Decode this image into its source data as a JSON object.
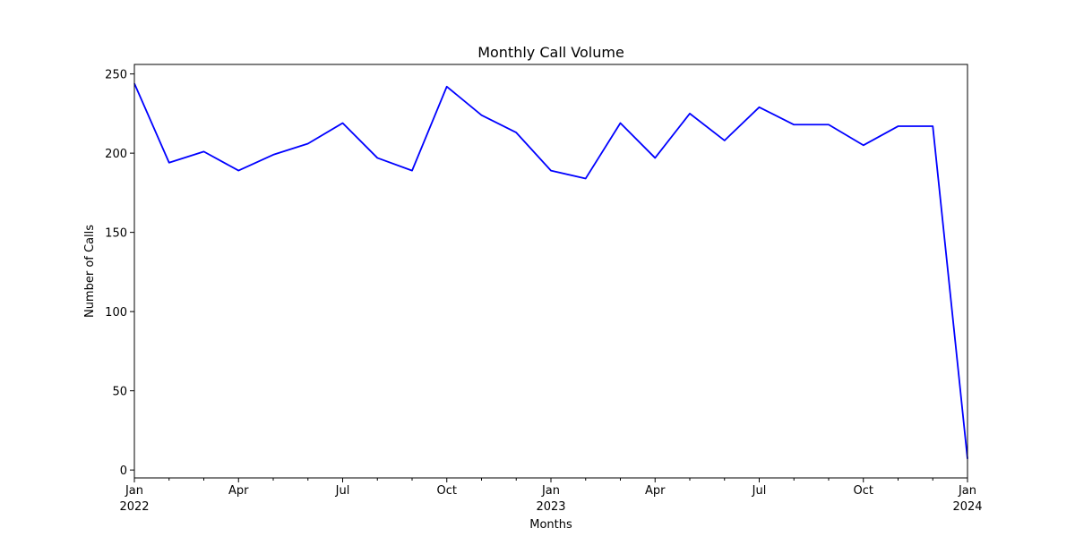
{
  "chart_data": {
    "type": "line",
    "title": "Monthly Call Volume",
    "xlabel": "Months",
    "ylabel": "Number of Calls",
    "x": [
      "2022-01",
      "2022-02",
      "2022-03",
      "2022-04",
      "2022-05",
      "2022-06",
      "2022-07",
      "2022-08",
      "2022-09",
      "2022-10",
      "2022-11",
      "2022-12",
      "2023-01",
      "2023-02",
      "2023-03",
      "2023-04",
      "2023-05",
      "2023-06",
      "2023-07",
      "2023-08",
      "2023-09",
      "2023-10",
      "2023-11",
      "2023-12",
      "2024-01"
    ],
    "series": [
      {
        "values": [
          244,
          194,
          201,
          189,
          199,
          206,
          219,
          197,
          189,
          242,
          224,
          213,
          189,
          184,
          219,
          197,
          225,
          208,
          229,
          218,
          218,
          205,
          217,
          217,
          7
        ],
        "color": "#0000ff"
      }
    ],
    "xlim": [
      "2022-01",
      "2024-01"
    ],
    "ylim": [
      -5,
      256
    ],
    "yticks": [
      0,
      50,
      100,
      150,
      200,
      250
    ],
    "xticks": [
      {
        "x": "2022-01",
        "label": "Jan",
        "sublabel": "2022"
      },
      {
        "x": "2022-04",
        "label": "Apr",
        "sublabel": ""
      },
      {
        "x": "2022-07",
        "label": "Jul",
        "sublabel": ""
      },
      {
        "x": "2022-10",
        "label": "Oct",
        "sublabel": ""
      },
      {
        "x": "2023-01",
        "label": "Jan",
        "sublabel": "2023"
      },
      {
        "x": "2023-04",
        "label": "Apr",
        "sublabel": ""
      },
      {
        "x": "2023-07",
        "label": "Jul",
        "sublabel": ""
      },
      {
        "x": "2023-10",
        "label": "Oct",
        "sublabel": ""
      },
      {
        "x": "2024-01",
        "label": "Jan",
        "sublabel": "2024"
      }
    ],
    "minor_xticks": [
      "2022-02",
      "2022-03",
      "2022-05",
      "2022-06",
      "2022-08",
      "2022-09",
      "2022-11",
      "2022-12",
      "2023-02",
      "2023-03",
      "2023-05",
      "2023-06",
      "2023-08",
      "2023-09",
      "2023-11",
      "2023-12"
    ],
    "grid": false,
    "legend": "none"
  }
}
